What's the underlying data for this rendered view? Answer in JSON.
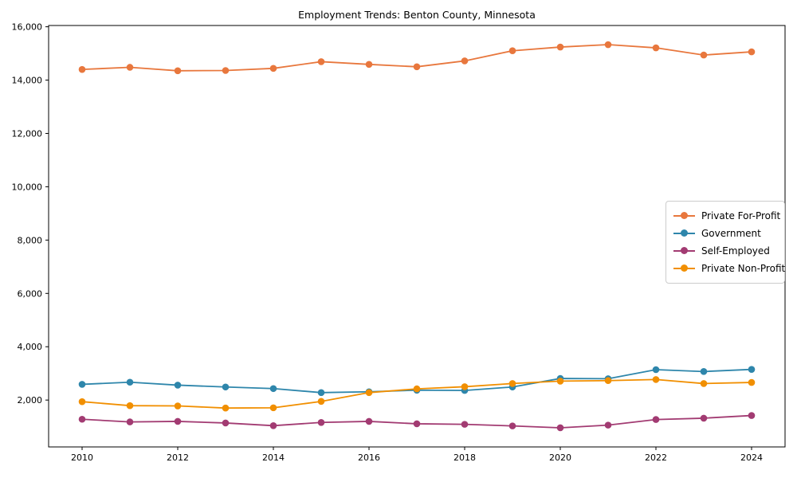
{
  "chart_data": {
    "type": "line",
    "title": "Employment Trends: Benton County, Minnesota",
    "xlabel": "",
    "ylabel": "",
    "x": [
      2010,
      2011,
      2012,
      2013,
      2014,
      2015,
      2016,
      2017,
      2018,
      2019,
      2020,
      2021,
      2022,
      2023,
      2024
    ],
    "series": [
      {
        "name": "Private For-Profit",
        "color": "#E8773D",
        "values": [
          14400,
          14480,
          14350,
          14360,
          14440,
          14690,
          14590,
          14500,
          14720,
          15100,
          15240,
          15330,
          15210,
          14940,
          15060
        ]
      },
      {
        "name": "Government",
        "color": "#2E86AB",
        "values": [
          2590,
          2670,
          2560,
          2490,
          2430,
          2280,
          2310,
          2370,
          2360,
          2490,
          2810,
          2800,
          3140,
          3070,
          3150
        ]
      },
      {
        "name": "Self-Employed",
        "color": "#A23B72",
        "values": [
          1280,
          1180,
          1200,
          1140,
          1040,
          1160,
          1200,
          1110,
          1090,
          1030,
          960,
          1060,
          1270,
          1320,
          1420
        ]
      },
      {
        "name": "Private Non-Profit",
        "color": "#F18F01",
        "values": [
          1940,
          1790,
          1780,
          1700,
          1710,
          1950,
          2280,
          2420,
          2500,
          2620,
          2710,
          2730,
          2770,
          2620,
          2660
        ]
      }
    ],
    "xticks": [
      2010,
      2012,
      2014,
      2016,
      2018,
      2020,
      2022,
      2024
    ],
    "yticks": [
      2000,
      4000,
      6000,
      8000,
      10000,
      12000,
      14000,
      16000
    ],
    "xlim": [
      2009.3,
      2024.7
    ],
    "ylim": [
      242,
      16048
    ],
    "grid": false,
    "legend_position": "center-right",
    "legend_order": [
      "Private For-Profit",
      "Government",
      "Self-Employed",
      "Private Non-Profit"
    ]
  }
}
